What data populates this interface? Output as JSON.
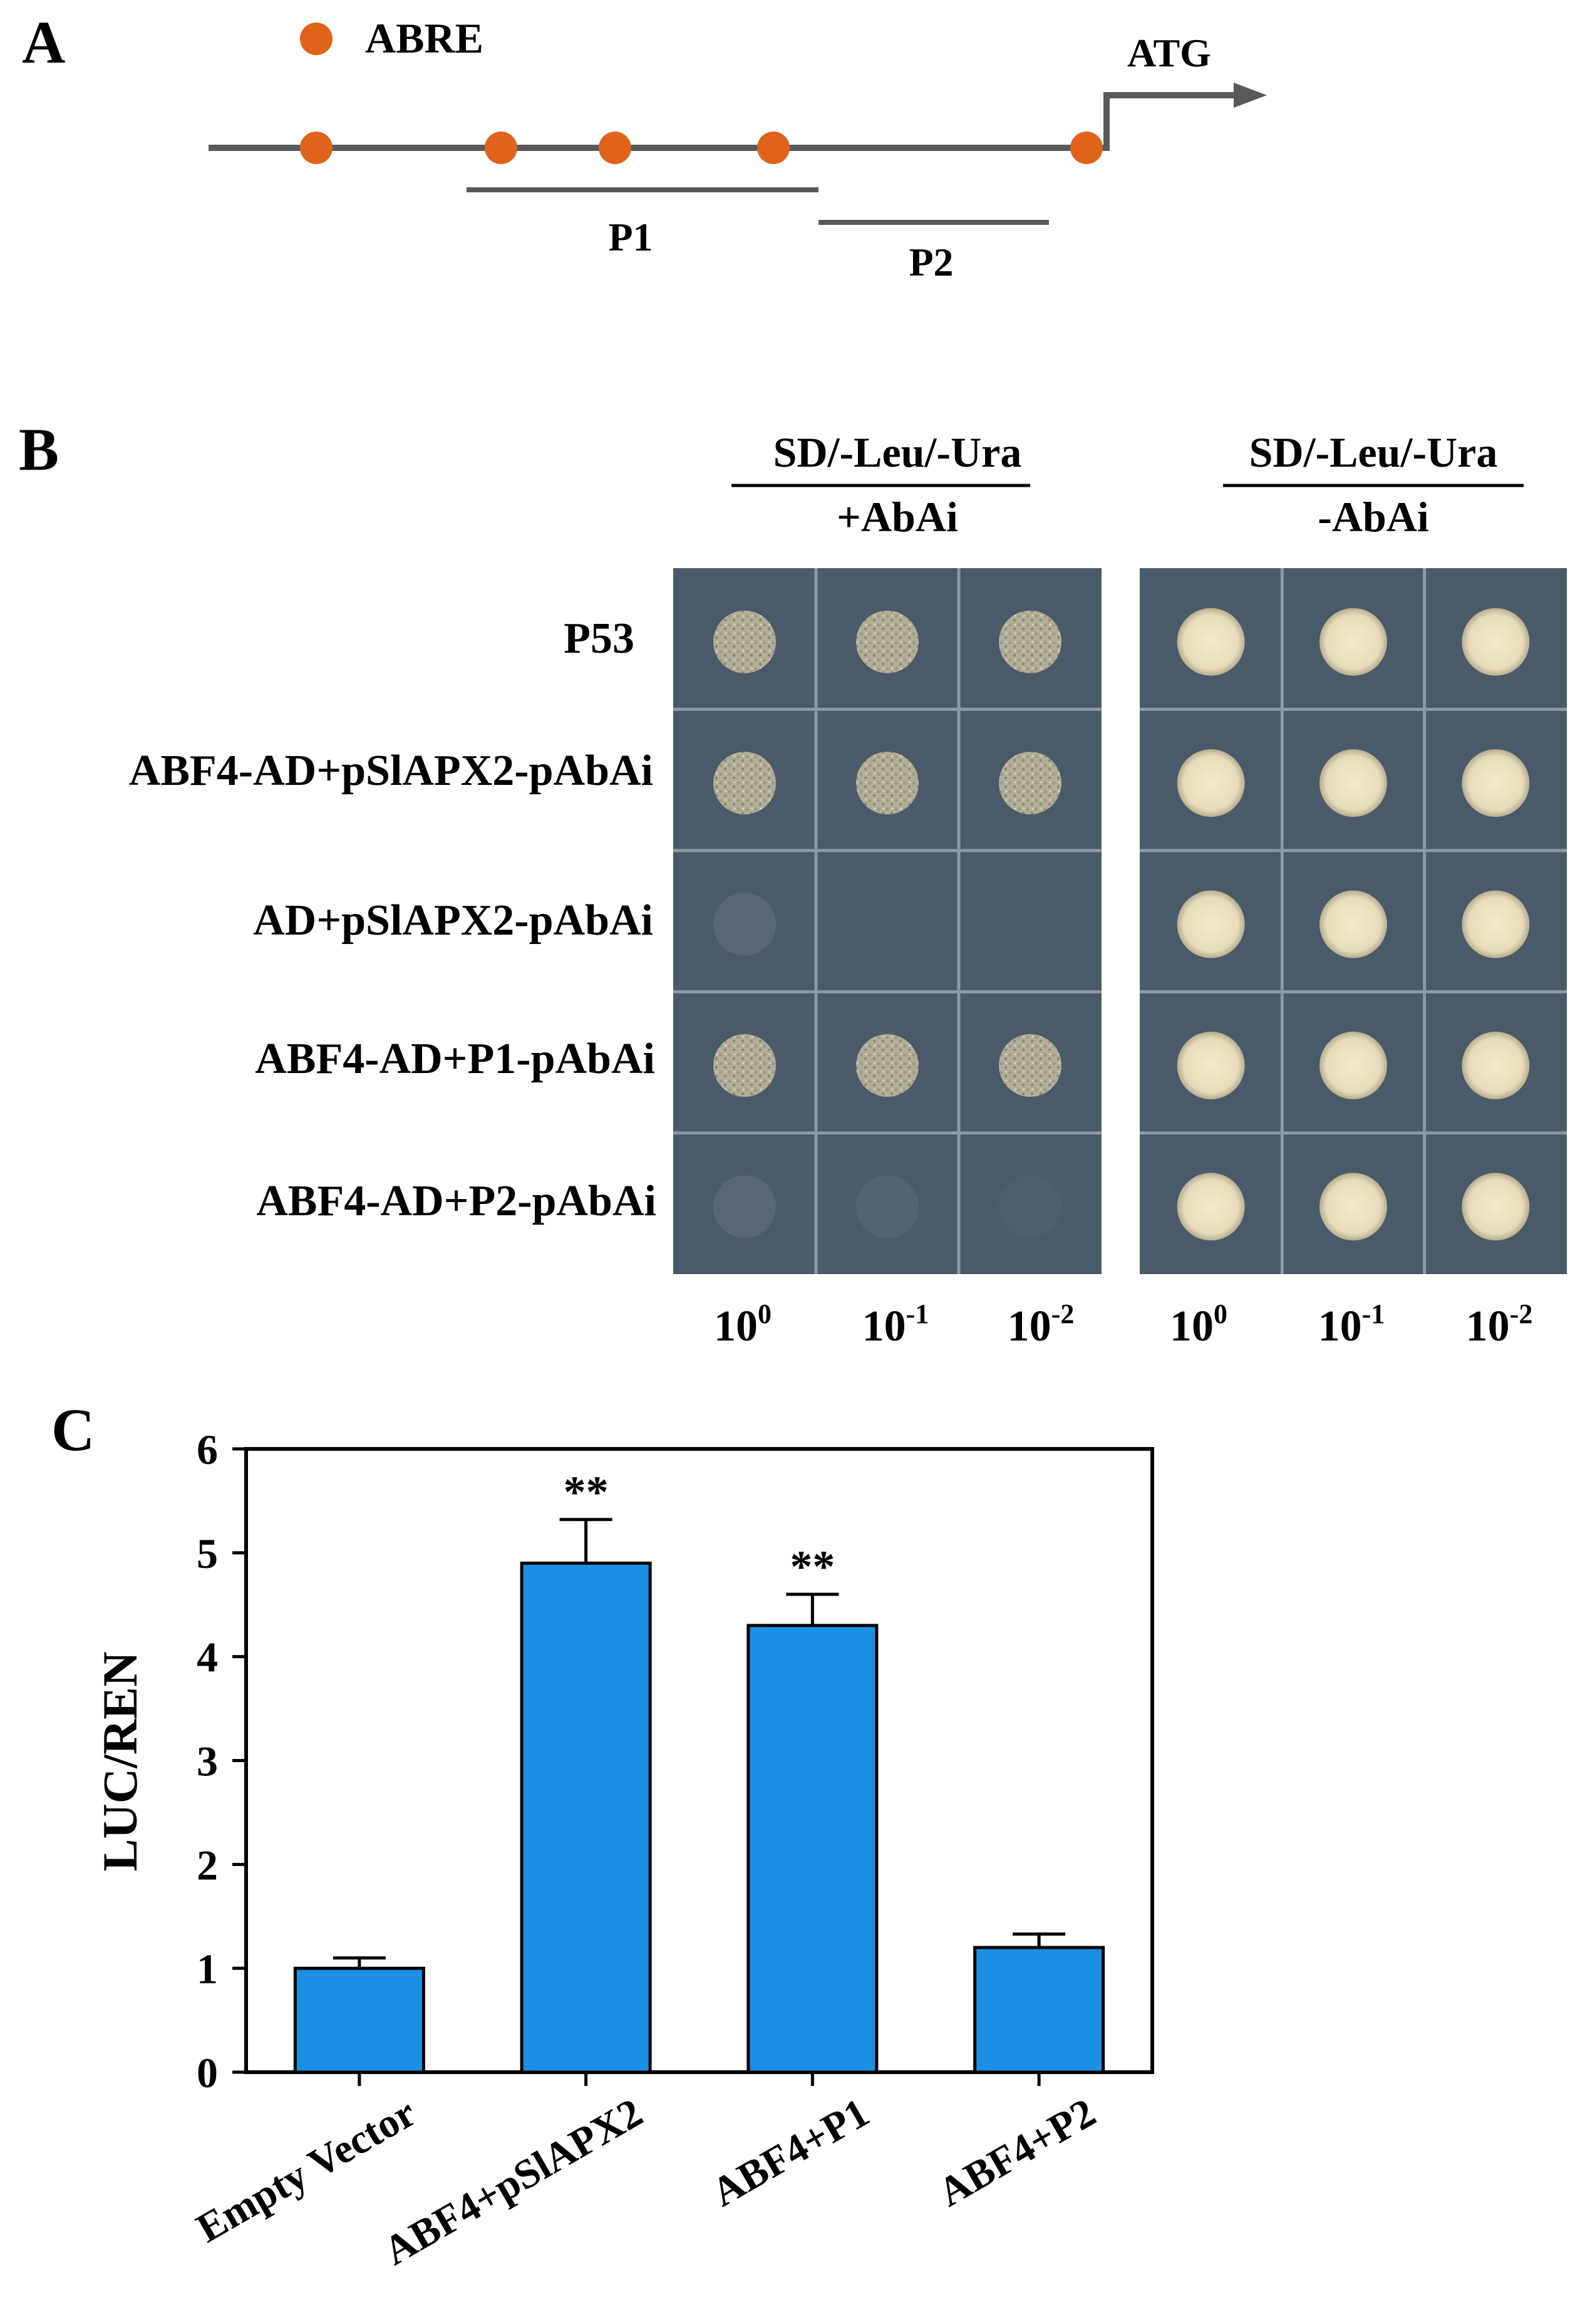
{
  "panel_a": {
    "label": "A",
    "legend_label": "ABRE",
    "start_codon_label": "ATG",
    "fragment_labels": [
      "P1",
      "P2"
    ],
    "abre_site_count": 5,
    "colors": {
      "abre": "#e0631c",
      "line": "#595959"
    }
  },
  "panel_b": {
    "label": "B",
    "plate_headers": [
      {
        "line1": "SD/-Leu/-Ura",
        "line2": "+AbAi"
      },
      {
        "line1": "SD/-Leu/-Ura",
        "line2": "-AbAi"
      }
    ],
    "rows": [
      "P53",
      "ABF4-AD+pSlAPX2-pAbAi",
      "AD+pSlAPX2-pAbAi",
      "ABF4-AD+P1-pAbAi",
      "ABF4-AD+P2-pAbAi"
    ],
    "dilutions": [
      {
        "base": "10",
        "exp": "0"
      },
      {
        "base": "10",
        "exp": "-1"
      },
      {
        "base": "10",
        "exp": "-2"
      }
    ],
    "growth_plus_abai": [
      [
        1,
        1,
        1
      ],
      [
        1,
        1,
        1
      ],
      [
        0.3,
        0,
        0
      ],
      [
        1,
        1,
        1
      ],
      [
        0.3,
        0.2,
        0.1
      ]
    ],
    "growth_minus_abai": [
      [
        1,
        1,
        1
      ],
      [
        1,
        1,
        1
      ],
      [
        1,
        1,
        1
      ],
      [
        1,
        1,
        1
      ],
      [
        1,
        1,
        1
      ]
    ]
  },
  "panel_c": {
    "label": "C",
    "chart_data": {
      "type": "bar",
      "categories": [
        "Empty Vector",
        "ABF4+pSlAPX2",
        "ABF4+P1",
        "ABF4+P2"
      ],
      "values": [
        1.0,
        4.9,
        4.3,
        1.2
      ],
      "errors": [
        0.1,
        0.42,
        0.3,
        0.13
      ],
      "annotations": [
        "",
        "**",
        "**",
        ""
      ],
      "ylabel": "LUC/REN",
      "xlabel": "",
      "ylim": [
        0,
        6
      ],
      "yticks": [
        0,
        1,
        2,
        3,
        4,
        5,
        6
      ],
      "bar_color": "#1a8fe3",
      "grid": false
    }
  }
}
